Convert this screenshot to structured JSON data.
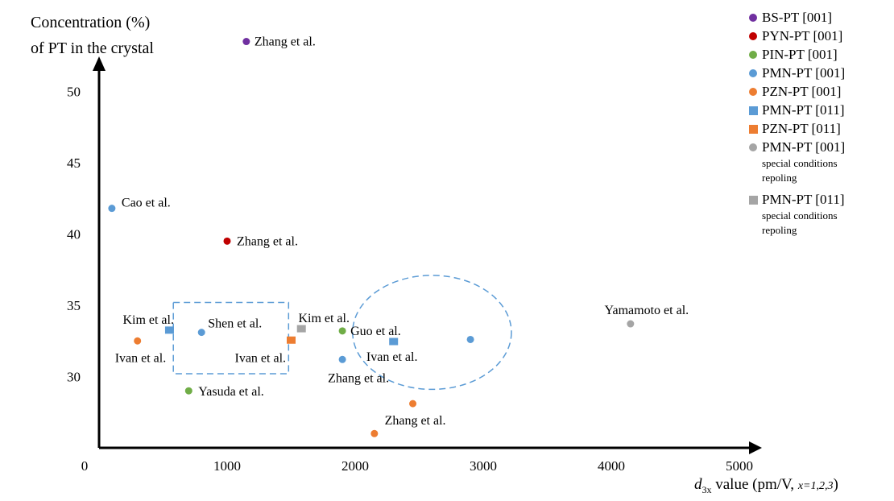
{
  "chart_data": {
    "type": "scatter",
    "xlabel": {
      "var": "d",
      "sub": "3x",
      "rest": " value (pm/V, ",
      "small": "x=1,2,3",
      "close": ")"
    },
    "ylabel_line1": "Concentration (%)",
    "ylabel_line2": "of PT in the crystal",
    "xlim": [
      0,
      5000
    ],
    "ylim": [
      25,
      55
    ],
    "x_ticks": [
      "0",
      "1000",
      "2000",
      "3000",
      "4000",
      "5000"
    ],
    "y_ticks": [
      "30",
      "35",
      "40",
      "45",
      "50"
    ],
    "legend": [
      {
        "label": "BS-PT [001]",
        "marker": "circle",
        "color": "#7030A0",
        "note": []
      },
      {
        "label": "PYN-PT [001]",
        "marker": "circle",
        "color": "#C00000",
        "note": []
      },
      {
        "label": "PIN-PT [001]",
        "marker": "circle",
        "color": "#70AD47",
        "note": []
      },
      {
        "label": "PMN-PT [001]",
        "marker": "circle",
        "color": "#5B9BD5",
        "note": []
      },
      {
        "label": "PZN-PT [001]",
        "marker": "circle",
        "color": "#ED7D31",
        "note": []
      },
      {
        "label": "PMN-PT [011]",
        "marker": "square",
        "color": "#5B9BD5",
        "note": []
      },
      {
        "label": "PZN-PT [011]",
        "marker": "square",
        "color": "#ED7D31",
        "note": []
      },
      {
        "label": "PMN-PT [001]",
        "marker": "circle",
        "color": "#A5A5A5",
        "note": [
          "special conditions",
          "repoling"
        ]
      },
      {
        "label": "PMN-PT [011]",
        "marker": "square",
        "color": "#A5A5A5",
        "note": [
          "special conditions",
          "repoling"
        ]
      }
    ],
    "series": [
      {
        "name": "BS-PT [001]",
        "marker": "circle",
        "color": "#7030A0",
        "points": [
          {
            "x": 1150,
            "y": 53.5,
            "label": "Zhang et al."
          }
        ]
      },
      {
        "name": "PYN-PT [001]",
        "marker": "circle",
        "color": "#C00000",
        "points": [
          {
            "x": 1000,
            "y": 39.5,
            "label": "Zhang et al."
          }
        ]
      },
      {
        "name": "PIN-PT [001]",
        "marker": "circle",
        "color": "#70AD47",
        "points": [
          {
            "x": 1900,
            "y": 33.2,
            "label": "Guo et al."
          },
          {
            "x": 700,
            "y": 29.0,
            "label": "Yasuda et al."
          }
        ]
      },
      {
        "name": "PMN-PT [001]",
        "marker": "circle",
        "color": "#5B9BD5",
        "points": [
          {
            "x": 100,
            "y": 41.8,
            "label": "Cao et al."
          },
          {
            "x": 800,
            "y": 33.1,
            "label": "Shen et al."
          },
          {
            "x": 1900,
            "y": 31.2,
            "label": "Zhang et al."
          },
          {
            "x": 2900,
            "y": 32.6,
            "label": ""
          }
        ]
      },
      {
        "name": "PZN-PT [001]",
        "marker": "circle",
        "color": "#ED7D31",
        "points": [
          {
            "x": 300,
            "y": 32.5,
            "label": "Ivan et al."
          },
          {
            "x": 2150,
            "y": 26.0,
            "label": ""
          },
          {
            "x": 2450,
            "y": 28.1,
            "label": "Zhang et al."
          }
        ]
      },
      {
        "name": "PMN-PT [011]",
        "marker": "square",
        "color": "#5B9BD5",
        "points": [
          {
            "x": 550,
            "y": 33.2,
            "label": "Kim et al."
          },
          {
            "x": 2300,
            "y": 32.4,
            "label": "Ivan et al."
          }
        ]
      },
      {
        "name": "PZN-PT [011]",
        "marker": "square",
        "color": "#ED7D31",
        "points": [
          {
            "x": 1500,
            "y": 32.5,
            "label": "Ivan et al."
          }
        ]
      },
      {
        "name": "PMN-PT [001] special conditions repoling",
        "marker": "circle",
        "color": "#A5A5A5",
        "points": [
          {
            "x": 4150,
            "y": 33.7,
            "label": "Yamamoto et al."
          }
        ]
      },
      {
        "name": "PMN-PT [011] special conditions repoling",
        "marker": "square",
        "color": "#A5A5A5",
        "points": [
          {
            "x": 1580,
            "y": 33.3,
            "label": "Kim et al."
          }
        ]
      }
    ],
    "annotations": {
      "box_color": "#5B9BD5",
      "dashed_rectangle": {
        "x0": 580,
        "x1": 1480,
        "y0": 30.2,
        "y1": 35.2
      },
      "dashed_ellipse": {
        "cx": 2600,
        "cy": 33.1,
        "rx": 620,
        "ry": 4.0
      }
    }
  }
}
